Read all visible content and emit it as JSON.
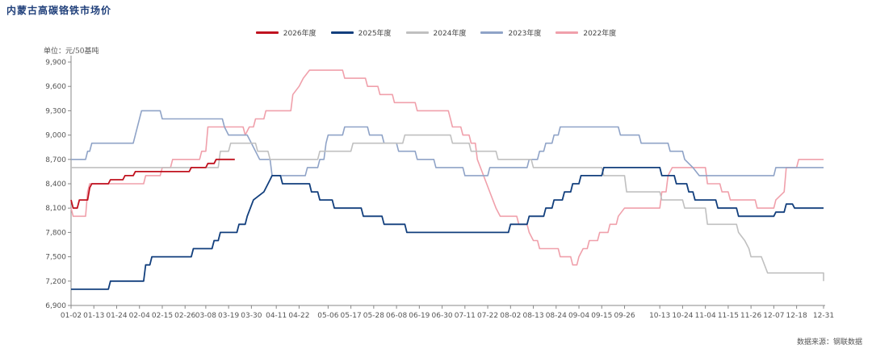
{
  "page": {
    "title": "内蒙古高碳铬铁市场价",
    "unit": "单位：元/50基吨",
    "source": "数据来源：钢联数据"
  },
  "chart_data": {
    "type": "line",
    "title": "内蒙古高碳铬铁市场价",
    "ylabel": "单位：元/50基吨",
    "ylim": [
      6900,
      9900
    ],
    "yticks": [
      6900,
      7200,
      7500,
      7800,
      8100,
      8400,
      8700,
      9000,
      9300,
      9600,
      9900
    ],
    "ytick_labels": [
      "6,900",
      "7,200",
      "7,500",
      "7,800",
      "8,100",
      "8,400",
      "8,700",
      "9,000",
      "9,300",
      "9,600",
      "9,900"
    ],
    "x_domain": [
      "01-02",
      "12-31"
    ],
    "xticks": [
      "01-02",
      "01-13",
      "01-24",
      "02-04",
      "02-15",
      "02-26",
      "03-08",
      "03-19",
      "03-30",
      "04-11",
      "04-22",
      "05-06",
      "05-17",
      "05-28",
      "06-08",
      "06-19",
      "06-30",
      "07-11",
      "07-22",
      "08-02",
      "08-13",
      "08-24",
      "09-04",
      "09-15",
      "09-26",
      "10-13",
      "10-24",
      "11-04",
      "11-15",
      "11-26",
      "12-07",
      "12-18",
      "12-31"
    ],
    "legend_position": "top-center",
    "grid": false,
    "series": [
      {
        "name": "2026年度",
        "color": "#c0121f",
        "points": [
          [
            "01-02",
            8200
          ],
          [
            "01-03",
            8100
          ],
          [
            "01-05",
            8100
          ],
          [
            "01-06",
            8200
          ],
          [
            "01-10",
            8200
          ],
          [
            "01-11",
            8350
          ],
          [
            "01-12",
            8400
          ],
          [
            "01-20",
            8400
          ],
          [
            "01-21",
            8450
          ],
          [
            "01-27",
            8450
          ],
          [
            "01-28",
            8500
          ],
          [
            "02-01",
            8500
          ],
          [
            "02-02",
            8550
          ],
          [
            "02-28",
            8550
          ],
          [
            "03-01",
            8600
          ],
          [
            "03-08",
            8600
          ],
          [
            "03-09",
            8650
          ],
          [
            "03-12",
            8650
          ],
          [
            "03-13",
            8700
          ],
          [
            "03-22",
            8700
          ]
        ]
      },
      {
        "name": "2025年度",
        "color": "#123f7d",
        "points": [
          [
            "01-02",
            7100
          ],
          [
            "01-20",
            7100
          ],
          [
            "01-21",
            7200
          ],
          [
            "02-06",
            7200
          ],
          [
            "02-07",
            7400
          ],
          [
            "02-09",
            7400
          ],
          [
            "02-10",
            7500
          ],
          [
            "03-01",
            7500
          ],
          [
            "03-02",
            7600
          ],
          [
            "03-11",
            7600
          ],
          [
            "03-12",
            7700
          ],
          [
            "03-14",
            7700
          ],
          [
            "03-15",
            7800
          ],
          [
            "03-23",
            7800
          ],
          [
            "03-24",
            7900
          ],
          [
            "03-27",
            7900
          ],
          [
            "03-28",
            8000
          ],
          [
            "03-31",
            8200
          ],
          [
            "04-05",
            8300
          ],
          [
            "04-08",
            8450
          ],
          [
            "04-09",
            8500
          ],
          [
            "04-13",
            8500
          ],
          [
            "04-14",
            8400
          ],
          [
            "04-27",
            8400
          ],
          [
            "04-28",
            8300
          ],
          [
            "05-01",
            8300
          ],
          [
            "05-02",
            8200
          ],
          [
            "05-08",
            8200
          ],
          [
            "05-09",
            8100
          ],
          [
            "05-22",
            8100
          ],
          [
            "05-23",
            8000
          ],
          [
            "06-01",
            8000
          ],
          [
            "06-02",
            7900
          ],
          [
            "06-12",
            7900
          ],
          [
            "06-13",
            7800
          ],
          [
            "08-01",
            7800
          ],
          [
            "08-02",
            7900
          ],
          [
            "08-10",
            7900
          ],
          [
            "08-11",
            8000
          ],
          [
            "08-18",
            8000
          ],
          [
            "08-19",
            8100
          ],
          [
            "08-22",
            8100
          ],
          [
            "08-23",
            8200
          ],
          [
            "08-27",
            8200
          ],
          [
            "08-28",
            8300
          ],
          [
            "08-31",
            8300
          ],
          [
            "09-01",
            8400
          ],
          [
            "09-04",
            8400
          ],
          [
            "09-05",
            8500
          ],
          [
            "09-15",
            8500
          ],
          [
            "09-16",
            8600
          ],
          [
            "10-13",
            8600
          ],
          [
            "10-14",
            8500
          ],
          [
            "10-20",
            8500
          ],
          [
            "10-21",
            8400
          ],
          [
            "10-26",
            8400
          ],
          [
            "10-27",
            8300
          ],
          [
            "10-29",
            8300
          ],
          [
            "10-30",
            8200
          ],
          [
            "11-09",
            8200
          ],
          [
            "11-10",
            8100
          ],
          [
            "11-19",
            8100
          ],
          [
            "11-20",
            8000
          ],
          [
            "12-07",
            8000
          ],
          [
            "12-08",
            8050
          ],
          [
            "12-12",
            8050
          ],
          [
            "12-13",
            8150
          ],
          [
            "12-16",
            8150
          ],
          [
            "12-17",
            8100
          ],
          [
            "12-31",
            8100
          ]
        ]
      },
      {
        "name": "2024年度",
        "color": "#c0c0c0",
        "points": [
          [
            "01-02",
            8600
          ],
          [
            "03-14",
            8600
          ],
          [
            "03-15",
            8800
          ],
          [
            "03-19",
            8800
          ],
          [
            "03-20",
            8900
          ],
          [
            "04-01",
            8900
          ],
          [
            "04-02",
            8800
          ],
          [
            "04-07",
            8800
          ],
          [
            "04-08",
            8700
          ],
          [
            "05-01",
            8700
          ],
          [
            "05-02",
            8800
          ],
          [
            "05-17",
            8800
          ],
          [
            "05-18",
            8900
          ],
          [
            "06-11",
            8900
          ],
          [
            "06-12",
            9000
          ],
          [
            "07-04",
            9000
          ],
          [
            "07-05",
            8900
          ],
          [
            "07-13",
            8900
          ],
          [
            "07-14",
            8800
          ],
          [
            "07-26",
            8800
          ],
          [
            "07-27",
            8700
          ],
          [
            "08-12",
            8700
          ],
          [
            "08-13",
            8600
          ],
          [
            "09-15",
            8600
          ],
          [
            "09-16",
            8500
          ],
          [
            "09-26",
            8500
          ],
          [
            "09-27",
            8300
          ],
          [
            "10-13",
            8300
          ],
          [
            "10-14",
            8200
          ],
          [
            "10-24",
            8200
          ],
          [
            "10-25",
            8100
          ],
          [
            "11-04",
            8100
          ],
          [
            "11-05",
            7900
          ],
          [
            "11-19",
            7900
          ],
          [
            "11-20",
            7800
          ],
          [
            "11-23",
            7700
          ],
          [
            "11-25",
            7600
          ],
          [
            "11-26",
            7500
          ],
          [
            "12-01",
            7500
          ],
          [
            "12-04",
            7300
          ],
          [
            "12-31",
            7300
          ],
          [
            "12-31",
            7200
          ]
        ]
      },
      {
        "name": "2023年度",
        "color": "#8fa3c7",
        "points": [
          [
            "01-02",
            8700
          ],
          [
            "01-09",
            8700
          ],
          [
            "01-10",
            8800
          ],
          [
            "01-11",
            8800
          ],
          [
            "01-12",
            8900
          ],
          [
            "02-01",
            8900
          ],
          [
            "02-02",
            9000
          ],
          [
            "02-05",
            9300
          ],
          [
            "02-14",
            9300
          ],
          [
            "02-15",
            9200
          ],
          [
            "03-16",
            9200
          ],
          [
            "03-17",
            9100
          ],
          [
            "03-19",
            9000
          ],
          [
            "03-28",
            9000
          ],
          [
            "03-30",
            8900
          ],
          [
            "04-03",
            8700
          ],
          [
            "04-08",
            8700
          ],
          [
            "04-09",
            8500
          ],
          [
            "04-25",
            8500
          ],
          [
            "04-26",
            8600
          ],
          [
            "05-01",
            8600
          ],
          [
            "05-02",
            8700
          ],
          [
            "05-04",
            8700
          ],
          [
            "05-05",
            8900
          ],
          [
            "05-06",
            9000
          ],
          [
            "05-13",
            9000
          ],
          [
            "05-14",
            9100
          ],
          [
            "05-25",
            9100
          ],
          [
            "05-26",
            9000
          ],
          [
            "06-01",
            9000
          ],
          [
            "06-02",
            8900
          ],
          [
            "06-08",
            8900
          ],
          [
            "06-09",
            8800
          ],
          [
            "06-17",
            8800
          ],
          [
            "06-18",
            8700
          ],
          [
            "06-26",
            8700
          ],
          [
            "06-27",
            8600
          ],
          [
            "07-10",
            8600
          ],
          [
            "07-11",
            8500
          ],
          [
            "07-22",
            8500
          ],
          [
            "07-23",
            8600
          ],
          [
            "08-10",
            8600
          ],
          [
            "08-11",
            8700
          ],
          [
            "08-15",
            8700
          ],
          [
            "08-16",
            8800
          ],
          [
            "08-18",
            8800
          ],
          [
            "08-19",
            8900
          ],
          [
            "08-22",
            8900
          ],
          [
            "08-23",
            9000
          ],
          [
            "08-25",
            9000
          ],
          [
            "08-26",
            9100
          ],
          [
            "09-23",
            9100
          ],
          [
            "09-24",
            9000
          ],
          [
            "10-03",
            9000
          ],
          [
            "10-04",
            8900
          ],
          [
            "10-17",
            8900
          ],
          [
            "10-18",
            8800
          ],
          [
            "10-24",
            8800
          ],
          [
            "10-25",
            8700
          ],
          [
            "10-29",
            8600
          ],
          [
            "11-01",
            8500
          ],
          [
            "12-07",
            8500
          ],
          [
            "12-08",
            8600
          ],
          [
            "12-31",
            8600
          ]
        ]
      },
      {
        "name": "2022年度",
        "color": "#f0a0ab",
        "points": [
          [
            "01-02",
            8100
          ],
          [
            "01-03",
            8000
          ],
          [
            "01-09",
            8000
          ],
          [
            "01-10",
            8300
          ],
          [
            "01-11",
            8400
          ],
          [
            "02-06",
            8400
          ],
          [
            "02-07",
            8500
          ],
          [
            "02-14",
            8500
          ],
          [
            "02-15",
            8600
          ],
          [
            "02-19",
            8600
          ],
          [
            "02-20",
            8700
          ],
          [
            "03-05",
            8700
          ],
          [
            "03-06",
            8800
          ],
          [
            "03-08",
            8800
          ],
          [
            "03-09",
            9100
          ],
          [
            "03-26",
            9100
          ],
          [
            "03-27",
            9000
          ],
          [
            "03-29",
            9100
          ],
          [
            "03-31",
            9100
          ],
          [
            "04-01",
            9200
          ],
          [
            "04-05",
            9200
          ],
          [
            "04-06",
            9300
          ],
          [
            "04-18",
            9300
          ],
          [
            "04-19",
            9500
          ],
          [
            "04-22",
            9600
          ],
          [
            "04-24",
            9700
          ],
          [
            "04-27",
            9800
          ],
          [
            "05-13",
            9800
          ],
          [
            "05-14",
            9700
          ],
          [
            "05-24",
            9700
          ],
          [
            "05-25",
            9600
          ],
          [
            "05-30",
            9600
          ],
          [
            "05-31",
            9500
          ],
          [
            "06-06",
            9500
          ],
          [
            "06-07",
            9400
          ],
          [
            "06-17",
            9400
          ],
          [
            "06-18",
            9300
          ],
          [
            "07-03",
            9300
          ],
          [
            "07-04",
            9200
          ],
          [
            "07-05",
            9100
          ],
          [
            "07-09",
            9100
          ],
          [
            "07-10",
            9000
          ],
          [
            "07-13",
            9000
          ],
          [
            "07-14",
            8900
          ],
          [
            "07-16",
            8900
          ],
          [
            "07-17",
            8700
          ],
          [
            "07-20",
            8500
          ],
          [
            "07-23",
            8300
          ],
          [
            "07-26",
            8100
          ],
          [
            "07-28",
            8000
          ],
          [
            "08-05",
            8000
          ],
          [
            "08-06",
            7900
          ],
          [
            "08-10",
            7900
          ],
          [
            "08-11",
            7800
          ],
          [
            "08-13",
            7700
          ],
          [
            "08-15",
            7700
          ],
          [
            "08-16",
            7600
          ],
          [
            "08-25",
            7600
          ],
          [
            "08-26",
            7500
          ],
          [
            "08-31",
            7500
          ],
          [
            "09-01",
            7400
          ],
          [
            "09-03",
            7400
          ],
          [
            "09-04",
            7500
          ],
          [
            "09-06",
            7600
          ],
          [
            "09-08",
            7600
          ],
          [
            "09-09",
            7700
          ],
          [
            "09-13",
            7700
          ],
          [
            "09-14",
            7800
          ],
          [
            "09-18",
            7800
          ],
          [
            "09-19",
            7900
          ],
          [
            "09-22",
            7900
          ],
          [
            "09-23",
            8000
          ],
          [
            "09-26",
            8100
          ],
          [
            "10-13",
            8100
          ],
          [
            "10-14",
            8300
          ],
          [
            "10-16",
            8300
          ],
          [
            "10-17",
            8500
          ],
          [
            "10-19",
            8600
          ],
          [
            "11-04",
            8600
          ],
          [
            "11-05",
            8400
          ],
          [
            "11-11",
            8400
          ],
          [
            "11-12",
            8300
          ],
          [
            "11-15",
            8300
          ],
          [
            "11-16",
            8200
          ],
          [
            "11-28",
            8200
          ],
          [
            "11-29",
            8100
          ],
          [
            "12-07",
            8100
          ],
          [
            "12-08",
            8200
          ],
          [
            "12-12",
            8300
          ],
          [
            "12-13",
            8600
          ],
          [
            "12-18",
            8600
          ],
          [
            "12-19",
            8700
          ],
          [
            "12-31",
            8700
          ]
        ]
      }
    ]
  }
}
